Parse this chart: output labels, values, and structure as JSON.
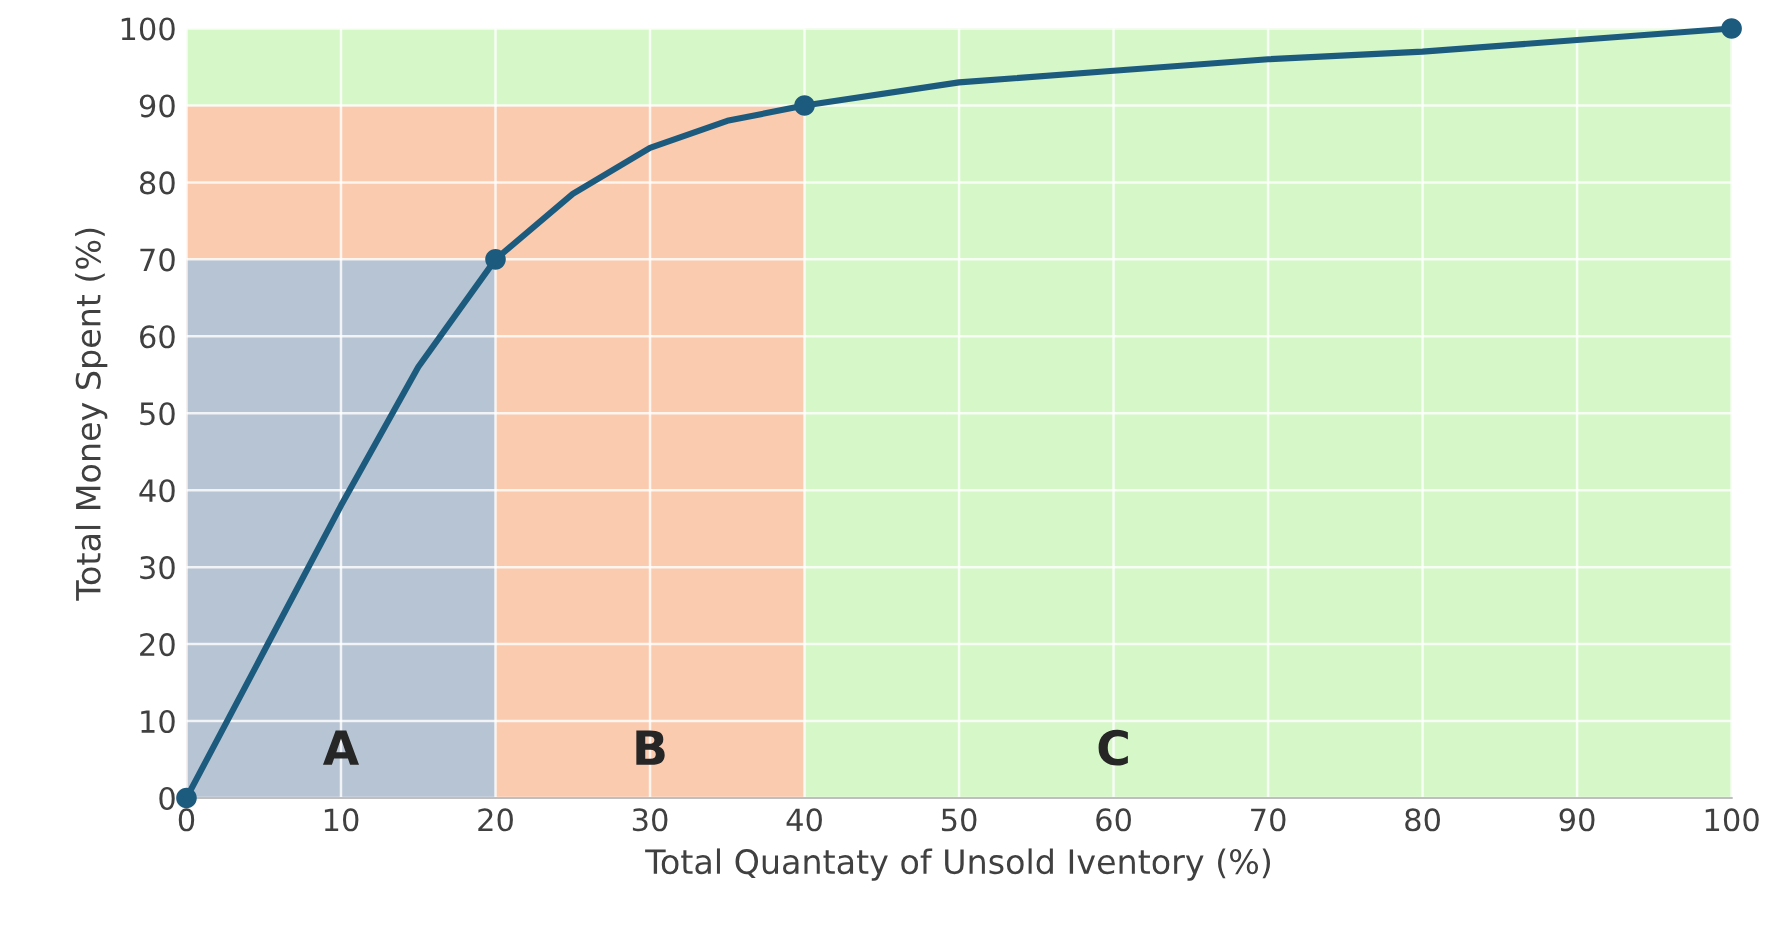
{
  "chart_data": {
    "type": "line",
    "xlabel": "Total Quantaty of Unsold Iventory (%)",
    "ylabel": "Total Money Spent (%)",
    "xlim": [
      0,
      100
    ],
    "xticks": [
      0,
      10,
      20,
      30,
      40,
      50,
      60,
      70,
      80,
      90,
      100
    ],
    "ylim": [
      0,
      100
    ],
    "yticks": [
      0,
      10,
      20,
      30,
      40,
      50,
      60,
      70,
      80,
      90,
      100
    ],
    "grid": true,
    "series": [
      {
        "color": "#1d5b7e",
        "x": [
          0,
          5,
          10,
          15,
          20,
          25,
          30,
          35,
          40,
          50,
          60,
          70,
          80,
          90,
          100
        ],
        "values": [
          0,
          19,
          38,
          56,
          70,
          78.5,
          84.5,
          88,
          90,
          93,
          94.5,
          96,
          97,
          98.5,
          100
        ],
        "line_style": "solid"
      },
      {
        "type": "scatter",
        "color": "#1d5b7e",
        "x": [
          0,
          20,
          40,
          100
        ],
        "values": [
          0,
          70,
          90,
          100
        ],
        "marker": "circle"
      },
      {
        "type": "area",
        "color": "#fbcbb0",
        "x": [
          0,
          40
        ],
        "values": [
          90,
          90
        ]
      },
      {
        "type": "area",
        "color": "#b7c4d3",
        "x": [
          0,
          20
        ],
        "values": [
          70,
          70
        ]
      }
    ],
    "bands": [
      {
        "axis": "x",
        "from": 40,
        "to": 100,
        "color": "#d6f7c8"
      },
      {
        "axis": "y",
        "from": 90,
        "to": 100,
        "color": "#d6f7c8"
      }
    ],
    "annotations": [
      "A",
      "B",
      "C"
    ]
  }
}
